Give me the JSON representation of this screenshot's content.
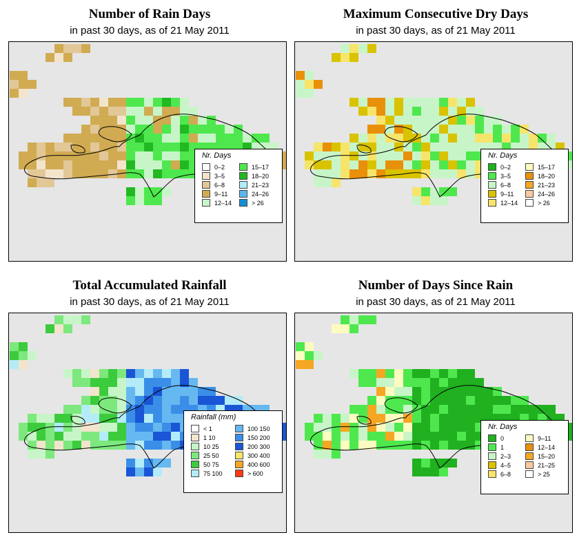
{
  "panels": [
    {
      "title": "Number of Rain Days",
      "subtitle": "in past 30 days, as of  21 May 2011",
      "legend_title": "Nr. Days",
      "legend": [
        {
          "label": "0–2",
          "color": "#ffffff"
        },
        {
          "label": "3–5",
          "color": "#f3e4cc"
        },
        {
          "label": "6–8",
          "color": "#e2c797"
        },
        {
          "label": "9–11",
          "color": "#d1ab52"
        },
        {
          "label": "12–14",
          "color": "#c8f5c8"
        },
        {
          "label": "15–17",
          "color": "#4ee84e"
        },
        {
          "label": "18–20",
          "color": "#22b822"
        },
        {
          "label": "21–23",
          "color": "#b3ecf8"
        },
        {
          "label": "24–26",
          "color": "#5ab8ee"
        },
        {
          "label": "> 26",
          "color": "#148fd6"
        }
      ]
    },
    {
      "title": "Maximum Consecutive Dry Days",
      "subtitle": "in past 30 days, as of  21 May 2011",
      "legend_title": "Nr. Days",
      "legend": [
        {
          "label": "0–2",
          "color": "#20b020"
        },
        {
          "label": "3–5",
          "color": "#4ee84e"
        },
        {
          "label": "6–8",
          "color": "#c8f5c8"
        },
        {
          "label": "9–11",
          "color": "#d9c300"
        },
        {
          "label": "12–14",
          "color": "#f7e46a"
        },
        {
          "label": "15–17",
          "color": "#fdfcc0"
        },
        {
          "label": "18–20",
          "color": "#e8900a"
        },
        {
          "label": "21–23",
          "color": "#f5a623"
        },
        {
          "label": "24–26",
          "color": "#fbc9a0"
        },
        {
          "label": "> 26",
          "color": "#ffffff"
        }
      ]
    },
    {
      "title": "Total Accumulated Rainfall",
      "subtitle": "in past 30 days, as of  21 May 2011",
      "legend_title": "Rainfall (mm)",
      "legend": [
        {
          "label": "< 1",
          "color": "#ffffff"
        },
        {
          "label": "1    10",
          "color": "#f3e4cc"
        },
        {
          "label": "10    25",
          "color": "#c8f5c8"
        },
        {
          "label": "25    50",
          "color": "#7de87d"
        },
        {
          "label": "50    75",
          "color": "#3ccb3c"
        },
        {
          "label": "75   100",
          "color": "#b3ecf8"
        },
        {
          "label": "100   150",
          "color": "#66b8f0"
        },
        {
          "label": "150   200",
          "color": "#3a8ee8"
        },
        {
          "label": "200   300",
          "color": "#1a55d6"
        },
        {
          "label": "300   400",
          "color": "#f7e46a"
        },
        {
          "label": "400   600",
          "color": "#f5a623"
        },
        {
          "label": "> 600",
          "color": "#ff3a10"
        }
      ]
    },
    {
      "title": "Number of Days Since Rain",
      "subtitle": "in past 30 days, as of  21 May 2011",
      "legend_title": "Nr. Days",
      "legend": [
        {
          "label": "0",
          "color": "#20b020"
        },
        {
          "label": "1",
          "color": "#4ee84e"
        },
        {
          "label": "2–3",
          "color": "#c8f5c8"
        },
        {
          "label": "4–5",
          "color": "#d9c300"
        },
        {
          "label": "6–8",
          "color": "#f7e46a"
        },
        {
          "label": "9–11",
          "color": "#fdfcc0"
        },
        {
          "label": "12–14",
          "color": "#e8900a"
        },
        {
          "label": "15–20",
          "color": "#f5a623"
        },
        {
          "label": "21–25",
          "color": "#fbc9a0"
        },
        {
          "label": "> 25",
          "color": "#ffffff"
        }
      ]
    }
  ]
}
